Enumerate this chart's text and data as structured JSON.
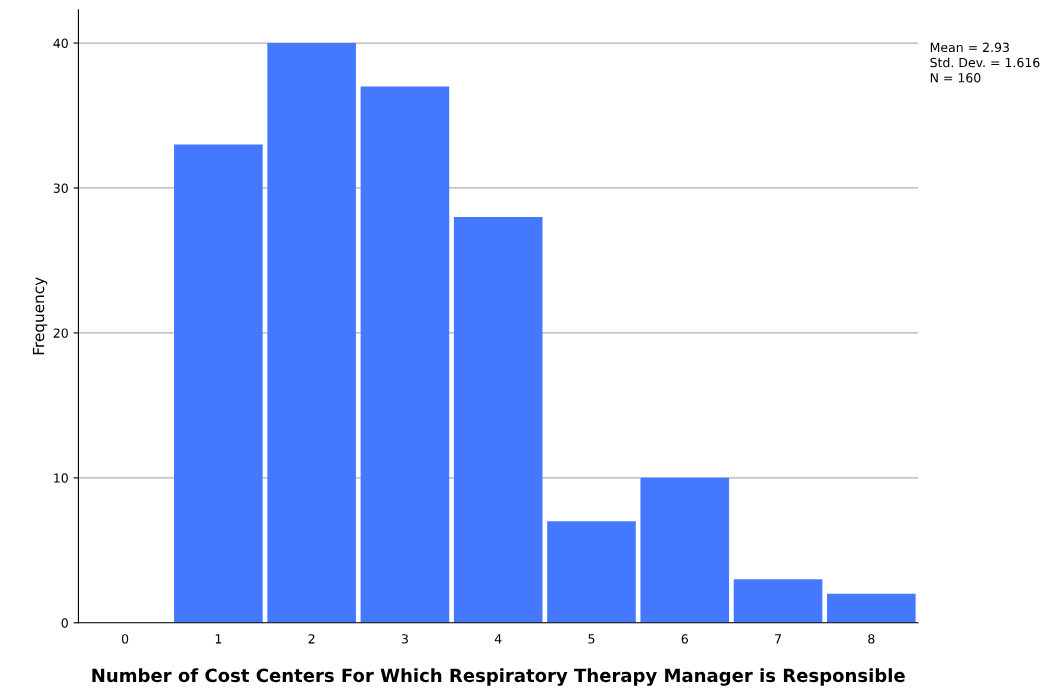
{
  "chart_data": {
    "type": "bar",
    "xlabel": "Number of Cost Centers For Which Respiratory Therapy Manager is Responsible",
    "ylabel": "Frequency",
    "categories": [
      "0",
      "1",
      "2",
      "3",
      "4",
      "5",
      "6",
      "7",
      "8"
    ],
    "values": [
      0,
      33,
      40,
      37,
      28,
      7,
      10,
      3,
      2
    ],
    "color": "#4479ff",
    "ylim": [
      0,
      42.3
    ],
    "yticks": [
      0,
      10,
      20,
      30,
      40
    ],
    "grid": "y",
    "legend": false,
    "annotations": [
      "Mean = 2.93",
      "Std. Dev. = 1.616",
      "N = 160"
    ]
  }
}
